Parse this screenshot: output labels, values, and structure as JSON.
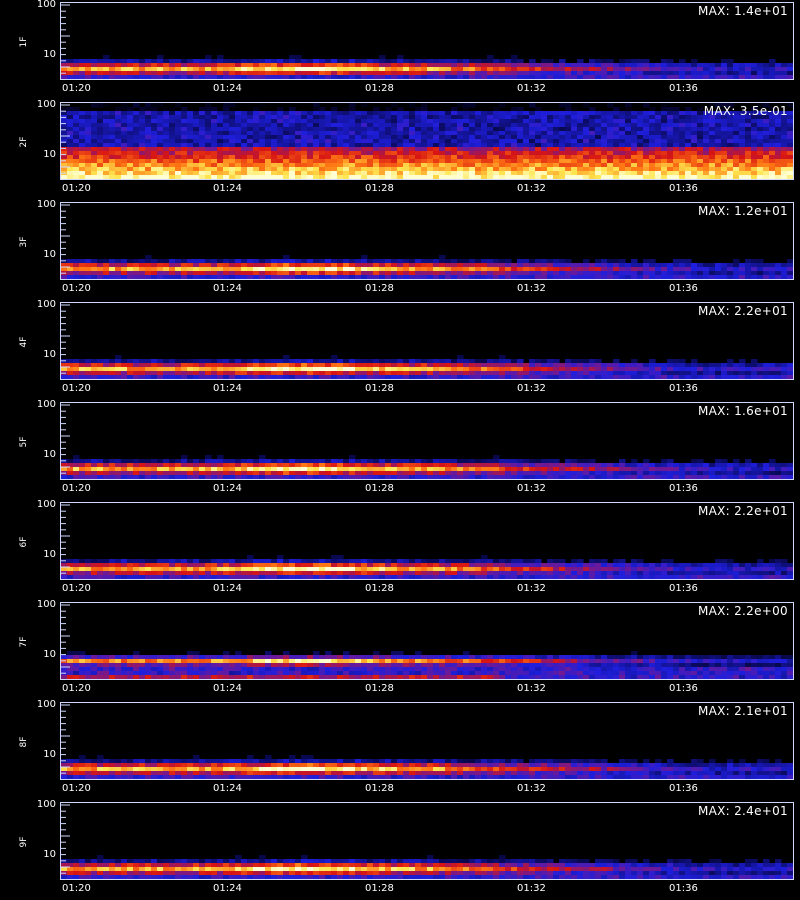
{
  "chart_data": {
    "type": "heatmap",
    "x_ticks": [
      "01:20",
      "01:24",
      "01:28",
      "01:32",
      "01:36"
    ],
    "y_ticks": [
      "100",
      "10"
    ],
    "y_scale": "log",
    "colormap": [
      "#000000",
      "#1414c8",
      "#6a1a9a",
      "#d41010",
      "#ff7a10",
      "#ffe85a",
      "#ffffc8"
    ],
    "panels": [
      {
        "label": "1F",
        "max_label": "MAX: 1.4e+01",
        "band": "low",
        "peak_time": "01:26"
      },
      {
        "label": "2F",
        "max_label": "MAX: 3.5e-01",
        "band": "wide",
        "peak_time": "01:20-01:38"
      },
      {
        "label": "3F",
        "max_label": "MAX: 1.2e+01",
        "band": "low",
        "peak_time": "01:26"
      },
      {
        "label": "4F",
        "max_label": "MAX: 2.2e+01",
        "band": "low",
        "peak_time": "01:26"
      },
      {
        "label": "5F",
        "max_label": "MAX: 1.6e+01",
        "band": "low",
        "peak_time": "01:26"
      },
      {
        "label": "6F",
        "max_label": "MAX: 2.2e+01",
        "band": "low",
        "peak_time": "01:26"
      },
      {
        "label": "7F",
        "max_label": "MAX: 2.2e+00",
        "band": "mid",
        "peak_time": "01:26"
      },
      {
        "label": "8F",
        "max_label": "MAX: 2.1e+01",
        "band": "low",
        "peak_time": "01:26"
      },
      {
        "label": "9F",
        "max_label": "MAX: 2.4e+01",
        "band": "low",
        "peak_time": "01:26"
      }
    ]
  }
}
